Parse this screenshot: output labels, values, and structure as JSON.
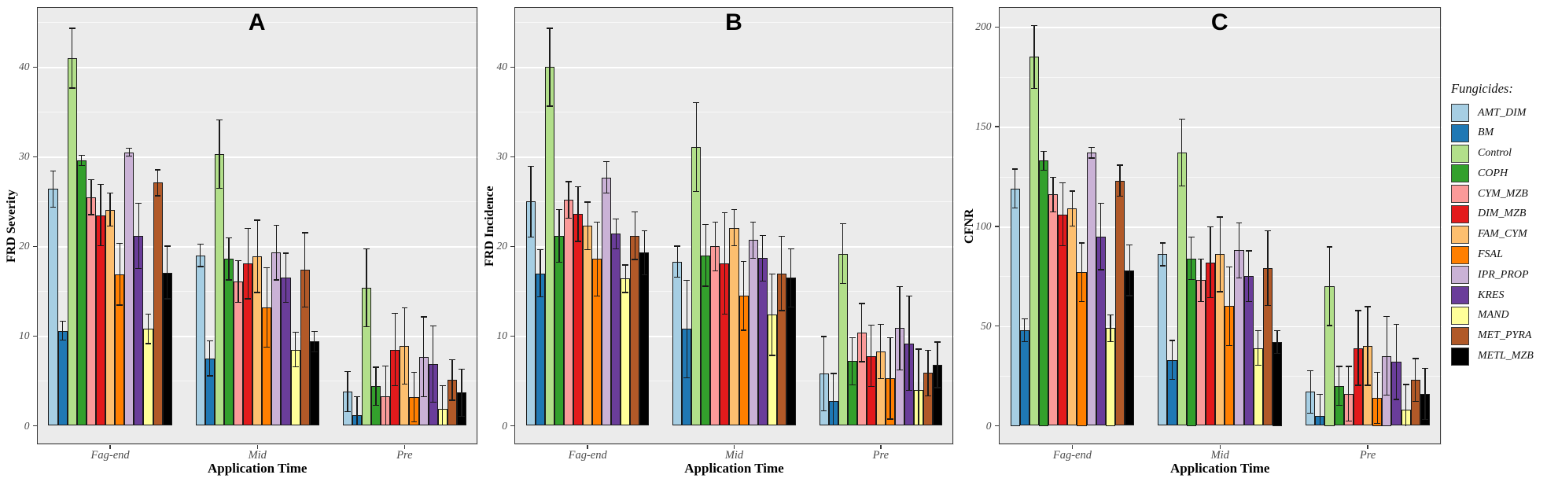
{
  "legend": {
    "title": "Fungicides:",
    "items": [
      {
        "label": "AMT_DIM",
        "color": "#a6cee3"
      },
      {
        "label": "BM",
        "color": "#1f78b4"
      },
      {
        "label": "Control",
        "color": "#b2df8a"
      },
      {
        "label": "COPH",
        "color": "#33a02c"
      },
      {
        "label": "CYM_MZB",
        "color": "#fb9a99"
      },
      {
        "label": "DIM_MZB",
        "color": "#e31a1c"
      },
      {
        "label": "FAM_CYM",
        "color": "#fdbf6f"
      },
      {
        "label": "FSAL",
        "color": "#ff7f00"
      },
      {
        "label": "IPR_PROP",
        "color": "#cab2d6"
      },
      {
        "label": "KRES",
        "color": "#6a3d9a"
      },
      {
        "label": "MAND",
        "color": "#ffff99"
      },
      {
        "label": "MET_PYRA",
        "color": "#b15928"
      },
      {
        "label": "METL_MZB",
        "color": "#000000"
      }
    ]
  },
  "chart_data": [
    {
      "type": "bar",
      "panel_label": "A",
      "ylabel": "FRD Severity",
      "xlabel": "Application Time",
      "categories": [
        "Fag-end",
        "Mid",
        "Pre"
      ],
      "yticks": [
        0,
        10,
        20,
        30,
        40
      ],
      "ylim": [
        0,
        46.7
      ],
      "grid": "major+minor",
      "legend_position": "right-of-figure",
      "series": [
        {
          "name": "AMT_DIM",
          "values": [
            26.4,
            19.0,
            3.8
          ],
          "errors_hi": [
            28.5,
            20.3,
            6.1
          ]
        },
        {
          "name": "BM",
          "values": [
            10.6,
            7.5,
            1.2
          ],
          "errors_hi": [
            11.7,
            9.5,
            3.3
          ]
        },
        {
          "name": "Control",
          "values": [
            41.0,
            30.3,
            15.4
          ],
          "errors_hi": [
            44.4,
            34.2,
            19.8
          ]
        },
        {
          "name": "COPH",
          "values": [
            29.6,
            18.6,
            4.4
          ],
          "errors_hi": [
            30.2,
            21.0,
            6.6
          ]
        },
        {
          "name": "CYM_MZB",
          "values": [
            25.5,
            16.1,
            3.3
          ],
          "errors_hi": [
            27.5,
            18.5,
            6.7
          ]
        },
        {
          "name": "DIM_MZB",
          "values": [
            23.5,
            18.1,
            8.5
          ],
          "errors_hi": [
            27.0,
            22.1,
            12.6
          ]
        },
        {
          "name": "FAM_CYM",
          "values": [
            24.1,
            18.9,
            8.9
          ],
          "errors_hi": [
            26.0,
            23.0,
            13.2
          ]
        },
        {
          "name": "FSAL",
          "values": [
            16.9,
            13.2,
            3.2
          ],
          "errors_hi": [
            20.4,
            17.7,
            6.0
          ]
        },
        {
          "name": "IPR_PROP",
          "values": [
            30.5,
            19.3,
            7.7
          ],
          "errors_hi": [
            31.0,
            22.4,
            12.2
          ]
        },
        {
          "name": "KRES",
          "values": [
            21.2,
            16.5,
            6.9
          ],
          "errors_hi": [
            24.9,
            19.3,
            11.2
          ]
        },
        {
          "name": "MAND",
          "values": [
            10.8,
            8.5,
            1.9
          ],
          "errors_hi": [
            12.5,
            10.5,
            4.5
          ]
        },
        {
          "name": "MET_PYRA",
          "values": [
            27.1,
            17.4,
            5.1
          ],
          "errors_hi": [
            28.6,
            21.6,
            7.4
          ]
        },
        {
          "name": "METL_MZB",
          "values": [
            17.1,
            9.4,
            3.7
          ],
          "errors_hi": [
            20.1,
            10.6,
            6.4
          ]
        }
      ]
    },
    {
      "type": "bar",
      "panel_label": "B",
      "ylabel": "FRD Incidence",
      "xlabel": "Application Time",
      "categories": [
        "Fag-end",
        "Mid",
        "Pre"
      ],
      "yticks": [
        0,
        10,
        20,
        30,
        40
      ],
      "ylim": [
        0,
        46.7
      ],
      "grid": "major+minor",
      "legend_position": "right-of-figure",
      "series": [
        {
          "name": "AMT_DIM",
          "values": [
            25.0,
            18.3,
            5.8
          ],
          "errors_hi": [
            29.0,
            20.1,
            10.0
          ]
        },
        {
          "name": "BM",
          "values": [
            17.0,
            10.8,
            2.8
          ],
          "errors_hi": [
            19.7,
            16.3,
            5.9
          ]
        },
        {
          "name": "Control",
          "values": [
            40.0,
            31.1,
            19.2
          ],
          "errors_hi": [
            44.4,
            36.1,
            22.6
          ]
        },
        {
          "name": "COPH",
          "values": [
            21.2,
            19.0,
            7.2
          ],
          "errors_hi": [
            24.2,
            22.5,
            9.9
          ]
        },
        {
          "name": "CYM_MZB",
          "values": [
            25.2,
            20.0,
            10.4
          ],
          "errors_hi": [
            27.3,
            22.8,
            13.7
          ]
        },
        {
          "name": "DIM_MZB",
          "values": [
            23.6,
            18.1,
            7.8
          ],
          "errors_hi": [
            26.7,
            23.8,
            11.3
          ]
        },
        {
          "name": "FAM_CYM",
          "values": [
            22.3,
            22.1,
            8.3
          ],
          "errors_hi": [
            25.0,
            24.2,
            11.4
          ]
        },
        {
          "name": "FSAL",
          "values": [
            18.6,
            14.5,
            5.3
          ],
          "errors_hi": [
            22.8,
            18.4,
            9.9
          ]
        },
        {
          "name": "IPR_PROP",
          "values": [
            27.7,
            20.7,
            10.9
          ],
          "errors_hi": [
            29.5,
            22.8,
            15.6
          ]
        },
        {
          "name": "KRES",
          "values": [
            21.4,
            18.7,
            9.2
          ],
          "errors_hi": [
            23.1,
            21.3,
            14.5
          ]
        },
        {
          "name": "MAND",
          "values": [
            16.4,
            12.4,
            4.0
          ],
          "errors_hi": [
            18.0,
            17.0,
            8.6
          ]
        },
        {
          "name": "MET_PYRA",
          "values": [
            21.2,
            17.0,
            5.9
          ],
          "errors_hi": [
            23.9,
            21.2,
            8.5
          ]
        },
        {
          "name": "METL_MZB",
          "values": [
            19.3,
            16.5,
            6.8
          ],
          "errors_hi": [
            21.8,
            19.8,
            9.4
          ]
        }
      ]
    },
    {
      "type": "bar",
      "panel_label": "C",
      "ylabel": "CFNR",
      "xlabel": "Application Time",
      "categories": [
        "Fag-end",
        "Mid",
        "Pre"
      ],
      "yticks": [
        0,
        50,
        100,
        150,
        200
      ],
      "ylim": [
        0,
        210
      ],
      "grid": "major+minor",
      "legend_position": "right-of-figure",
      "series": [
        {
          "name": "AMT_DIM",
          "values": [
            119,
            86,
            17
          ],
          "errors_hi": [
            129,
            92,
            28
          ]
        },
        {
          "name": "BM",
          "values": [
            48,
            33,
            5
          ],
          "errors_hi": [
            54,
            43,
            16
          ]
        },
        {
          "name": "Control",
          "values": [
            185,
            137,
            70
          ],
          "errors_hi": [
            201,
            154,
            90
          ]
        },
        {
          "name": "COPH",
          "values": [
            133,
            84,
            20
          ],
          "errors_hi": [
            138,
            95,
            30
          ]
        },
        {
          "name": "CYM_MZB",
          "values": [
            116,
            73,
            16
          ],
          "errors_hi": [
            125,
            84,
            30
          ]
        },
        {
          "name": "DIM_MZB",
          "values": [
            106,
            82,
            39
          ],
          "errors_hi": [
            122,
            100,
            58
          ]
        },
        {
          "name": "FAM_CYM",
          "values": [
            109,
            86,
            40
          ],
          "errors_hi": [
            118,
            105,
            60
          ]
        },
        {
          "name": "FSAL",
          "values": [
            77,
            60,
            14
          ],
          "errors_hi": [
            92,
            80,
            27
          ]
        },
        {
          "name": "IPR_PROP",
          "values": [
            137,
            88,
            35
          ],
          "errors_hi": [
            140,
            102,
            55
          ]
        },
        {
          "name": "KRES",
          "values": [
            95,
            75,
            32
          ],
          "errors_hi": [
            112,
            88,
            51
          ]
        },
        {
          "name": "MAND",
          "values": [
            49,
            39,
            8
          ],
          "errors_hi": [
            56,
            48,
            21
          ]
        },
        {
          "name": "MET_PYRA",
          "values": [
            123,
            79,
            23
          ],
          "errors_hi": [
            131,
            98,
            34
          ]
        },
        {
          "name": "METL_MZB",
          "values": [
            78,
            42,
            16
          ],
          "errors_hi": [
            91,
            48,
            29
          ]
        }
      ]
    }
  ]
}
